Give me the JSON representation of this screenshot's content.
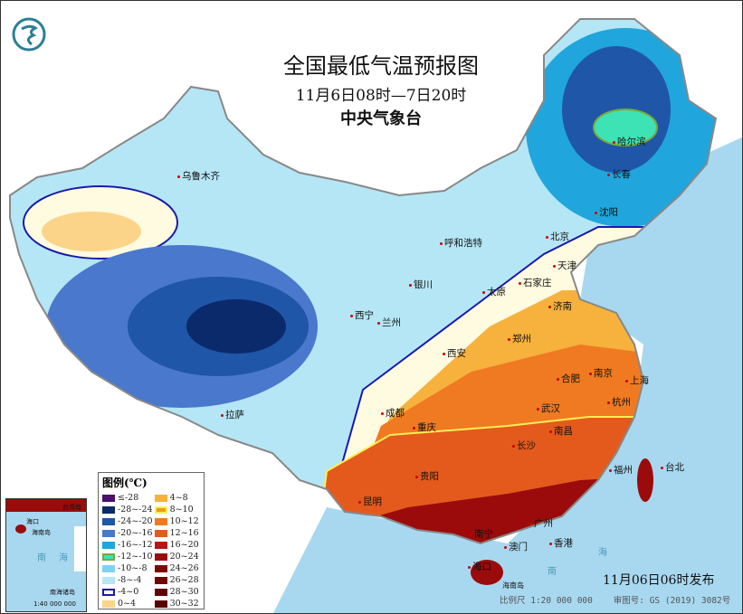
{
  "header": {
    "title": "全国最低气温预报图",
    "period": "11月6日08时—7日20时",
    "organization": "中央气象台"
  },
  "logo": {
    "icon": "cma-logo",
    "color": "#2a7f96"
  },
  "cities": [
    "乌鲁木齐",
    "哈尔滨",
    "长春",
    "沈阳",
    "北京",
    "天津",
    "呼和浩特",
    "石家庄",
    "太原",
    "济南",
    "银川",
    "西宁",
    "兰州",
    "西安",
    "郑州",
    "合肥",
    "南京",
    "上海",
    "杭州",
    "武汉",
    "成都",
    "重庆",
    "长沙",
    "南昌",
    "拉萨",
    "贵阳",
    "昆明",
    "福州",
    "台北",
    "广州",
    "南宁",
    "澳门",
    "香港",
    "海口"
  ],
  "seas": {
    "south_sea_1": "南",
    "south_sea_2": "海",
    "island": "海南岛"
  },
  "legend": {
    "title": "图例(℃)",
    "items": [
      {
        "label": "≤-28",
        "color": "#4b0f6e"
      },
      {
        "label": "-28~-24",
        "color": "#0b2a6b"
      },
      {
        "label": "-24~-20",
        "color": "#1f56a8"
      },
      {
        "label": "-20~-16",
        "color": "#4a78cc"
      },
      {
        "label": "-16~-12",
        "color": "#20a6dc"
      },
      {
        "label": "-12~-10",
        "color": "#3ee3b5",
        "outline": "#7aa83a"
      },
      {
        "label": "-10~-8",
        "color": "#7fd3f0"
      },
      {
        "label": "-8~-4",
        "color": "#b5e6f5"
      },
      {
        "label": "-4~0",
        "color": "#fffbe0",
        "outline": "#1a1aa8"
      },
      {
        "label": "0~4",
        "color": "#fbd48a"
      },
      {
        "label": "4~8",
        "color": "#f6b23c"
      },
      {
        "label": "8~10",
        "color": "#f39a18",
        "outline": "#ffee55"
      },
      {
        "label": "10~12",
        "color": "#ef7a22"
      },
      {
        "label": "12~16",
        "color": "#e45a1c"
      },
      {
        "label": "16~20",
        "color": "#b8141b"
      },
      {
        "label": "20~24",
        "color": "#9b0b0b"
      },
      {
        "label": "24~26",
        "color": "#7d0606"
      },
      {
        "label": "26~28",
        "color": "#6e0505"
      },
      {
        "label": "28~30",
        "color": "#620404"
      },
      {
        "label": "30~32",
        "color": "#560303"
      }
    ]
  },
  "inset": {
    "labels": [
      "海口",
      "海南岛",
      "台湾岛",
      "南",
      "海",
      "南海诸岛"
    ],
    "scale": "1:40 000 000"
  },
  "footer": {
    "published": "11月06日06时发布",
    "scale": "比例尺 1:20 000 000",
    "approval": "审图号: GS (2019) 3082号"
  }
}
